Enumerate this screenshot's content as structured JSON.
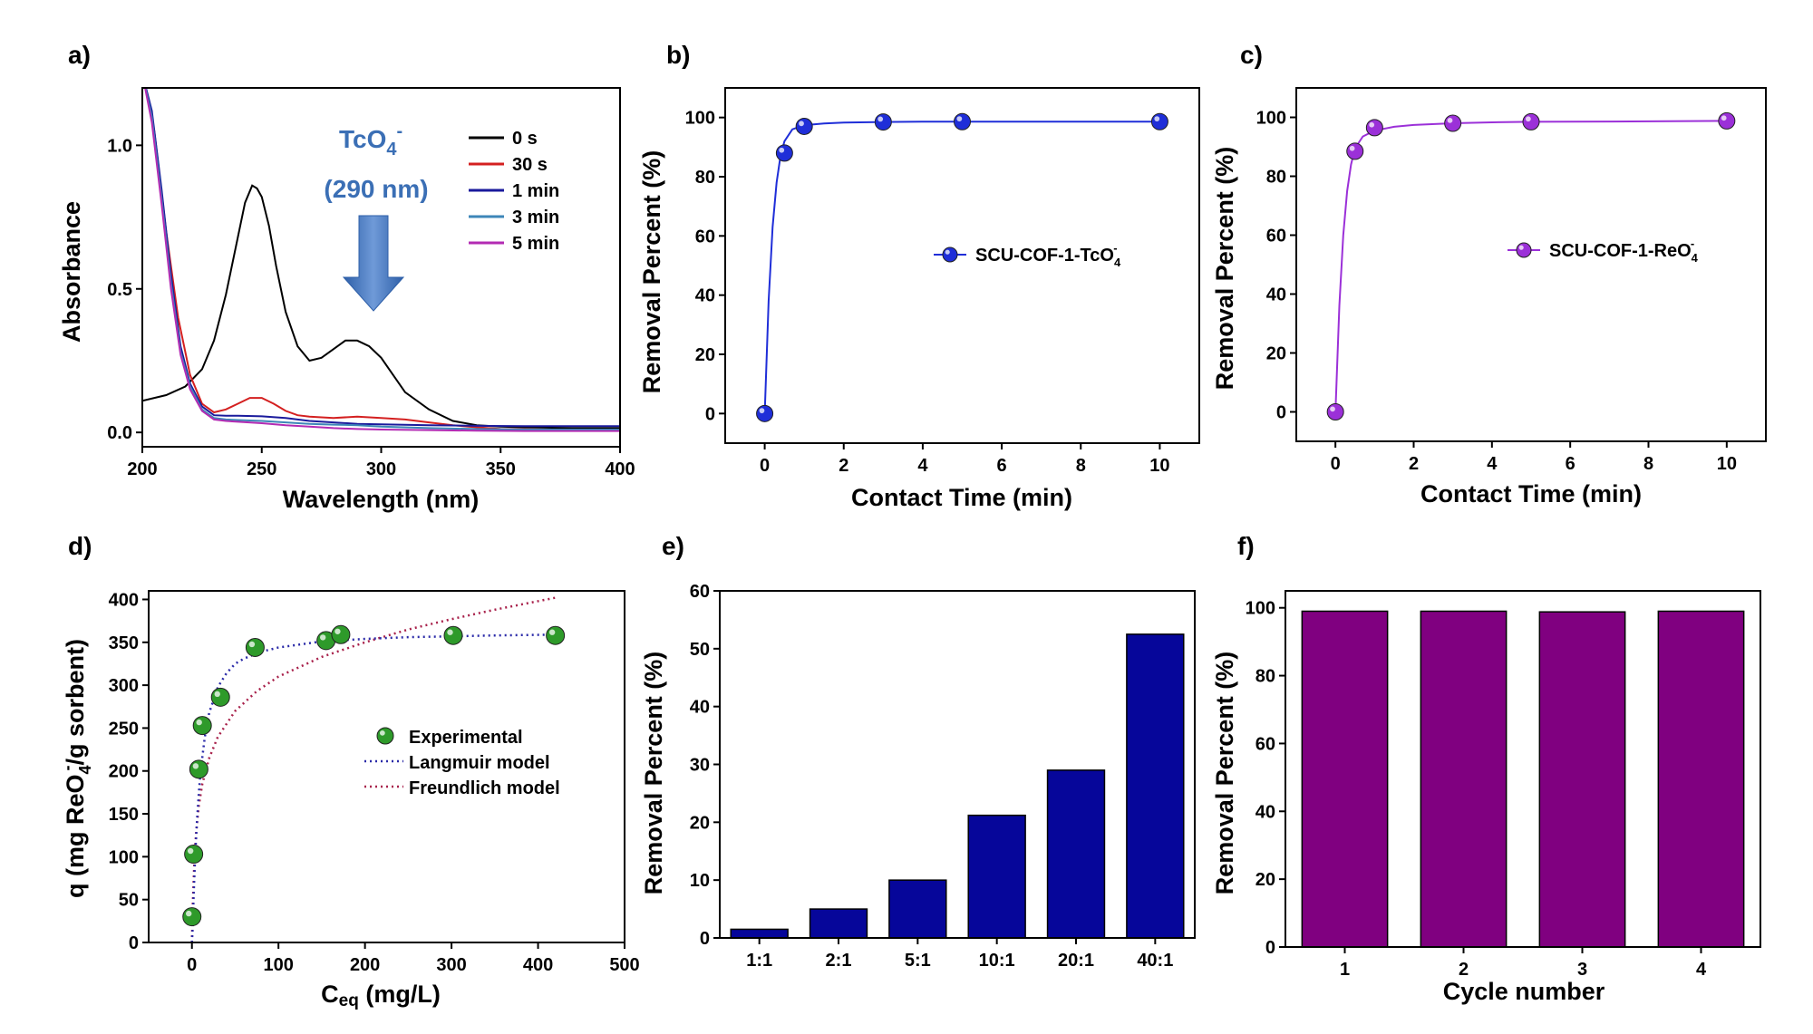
{
  "chart_data": [
    {
      "panel": "a)",
      "type": "line",
      "xlabel": "Wavelength (nm)",
      "ylabel": "Absorbance",
      "xlim": [
        200,
        400
      ],
      "ylim": [
        -0.05,
        1.2
      ],
      "xticks": [
        200,
        250,
        300,
        350,
        400
      ],
      "yticks": [
        0.0,
        0.5,
        1.0
      ],
      "ytick_labels": [
        "0.0",
        "0.5",
        "1.0"
      ],
      "annotation": {
        "ion": "TcO",
        "ion_sub": "4",
        "ion_sup": "-",
        "peak": "(290 nm)",
        "color": "#3b6fb5"
      },
      "legend_position": "top-right",
      "series": [
        {
          "name": "0 s",
          "color": "#000000",
          "x": [
            200,
            210,
            218,
            225,
            230,
            235,
            240,
            243,
            246,
            248,
            250,
            253,
            256,
            260,
            265,
            270,
            275,
            280,
            285,
            290,
            295,
            300,
            305,
            310,
            320,
            330,
            340,
            350,
            360,
            380,
            400
          ],
          "y": [
            0.11,
            0.13,
            0.16,
            0.22,
            0.32,
            0.48,
            0.68,
            0.8,
            0.86,
            0.85,
            0.82,
            0.72,
            0.58,
            0.42,
            0.3,
            0.25,
            0.26,
            0.29,
            0.32,
            0.32,
            0.3,
            0.26,
            0.2,
            0.14,
            0.08,
            0.04,
            0.025,
            0.02,
            0.018,
            0.015,
            0.015
          ]
        },
        {
          "name": "30 s",
          "color": "#d42020",
          "x": [
            200,
            205,
            210,
            215,
            220,
            225,
            230,
            235,
            240,
            245,
            250,
            255,
            260,
            265,
            270,
            280,
            290,
            300,
            310,
            320,
            330,
            340,
            350,
            370,
            400
          ],
          "y": [
            1.25,
            1.05,
            0.7,
            0.4,
            0.2,
            0.1,
            0.07,
            0.08,
            0.1,
            0.12,
            0.12,
            0.1,
            0.075,
            0.06,
            0.055,
            0.05,
            0.055,
            0.05,
            0.045,
            0.035,
            0.025,
            0.018,
            0.012,
            0.01,
            0.01
          ]
        },
        {
          "name": "1 min",
          "color": "#1a1a9c",
          "x": [
            200,
            204,
            208,
            212,
            216,
            220,
            225,
            230,
            235,
            240,
            250,
            260,
            270,
            280,
            290,
            300,
            320,
            340,
            360,
            380,
            400
          ],
          "y": [
            1.25,
            1.12,
            0.85,
            0.55,
            0.3,
            0.17,
            0.09,
            0.06,
            0.058,
            0.058,
            0.056,
            0.05,
            0.04,
            0.035,
            0.03,
            0.028,
            0.025,
            0.023,
            0.022,
            0.022,
            0.022
          ]
        },
        {
          "name": "3 min",
          "color": "#3d86b8",
          "x": [
            200,
            204,
            208,
            212,
            216,
            220,
            225,
            230,
            235,
            240,
            250,
            260,
            270,
            280,
            290,
            300,
            320,
            340,
            360,
            380,
            400
          ],
          "y": [
            1.25,
            1.1,
            0.82,
            0.52,
            0.28,
            0.16,
            0.08,
            0.05,
            0.045,
            0.043,
            0.04,
            0.035,
            0.03,
            0.027,
            0.025,
            0.02,
            0.015,
            0.012,
            0.01,
            0.01,
            0.01
          ]
        },
        {
          "name": "5 min",
          "color": "#b32bb3",
          "x": [
            200,
            204,
            208,
            212,
            216,
            220,
            225,
            230,
            235,
            240,
            250,
            260,
            270,
            280,
            290,
            300,
            320,
            340,
            360,
            380,
            400
          ],
          "y": [
            1.25,
            1.08,
            0.8,
            0.5,
            0.27,
            0.15,
            0.075,
            0.045,
            0.04,
            0.037,
            0.032,
            0.025,
            0.02,
            0.015,
            0.012,
            0.01,
            0.008,
            0.006,
            0.005,
            0.005,
            0.005
          ]
        }
      ]
    },
    {
      "panel": "b)",
      "type": "scatter",
      "xlabel": "Contact Time (min)",
      "ylabel": "Removal Percent (%)",
      "xlim": [
        -1,
        11
      ],
      "ylim": [
        -10,
        110
      ],
      "xticks": [
        0,
        2,
        4,
        6,
        8,
        10
      ],
      "yticks": [
        0,
        20,
        40,
        60,
        80,
        100
      ],
      "legend_position": "center-right",
      "series": [
        {
          "name": "SCU-COF-1-TcO",
          "name_sub": "4",
          "name_sup": "-",
          "color": "#1f2ed8",
          "x": [
            0,
            0.5,
            1,
            3,
            5,
            10
          ],
          "y": [
            0,
            88,
            97,
            98.5,
            98.6,
            98.6
          ],
          "fit_x": [
            0,
            0.1,
            0.2,
            0.3,
            0.4,
            0.5,
            0.7,
            1,
            1.5,
            2,
            3,
            4,
            5,
            7,
            10
          ],
          "fit_y": [
            0,
            38,
            63,
            78,
            87,
            92,
            96,
            97.4,
            98,
            98.3,
            98.5,
            98.6,
            98.6,
            98.6,
            98.6
          ]
        }
      ]
    },
    {
      "panel": "c)",
      "type": "scatter",
      "xlabel": "Contact Time (min)",
      "ylabel": "Removal Percent (%)",
      "xlim": [
        -1,
        11
      ],
      "ylim": [
        -10,
        110
      ],
      "xticks": [
        0,
        2,
        4,
        6,
        8,
        10
      ],
      "yticks": [
        0,
        20,
        40,
        60,
        80,
        100
      ],
      "legend_position": "center-right",
      "series": [
        {
          "name": "SCU-COF-1-ReO",
          "name_sub": "4",
          "name_sup": "-",
          "color": "#9b30d8",
          "x": [
            0,
            0.5,
            1,
            3,
            5,
            10
          ],
          "y": [
            0,
            88.5,
            96.5,
            98,
            98.5,
            98.8
          ],
          "fit_x": [
            0,
            0.1,
            0.2,
            0.3,
            0.4,
            0.5,
            0.7,
            1,
            1.5,
            2,
            3,
            4,
            5,
            7,
            10
          ],
          "fit_y": [
            0,
            36,
            60,
            75,
            84,
            89.5,
            93.5,
            95.5,
            96.8,
            97.4,
            98,
            98.3,
            98.5,
            98.6,
            98.8
          ]
        }
      ]
    },
    {
      "panel": "d)",
      "type": "scatter",
      "xlabel": "C",
      "xlabel_sub": "eq",
      "xlabel_unit": "(mg/L)",
      "ylabel_pre": "q (mg ReO",
      "ylabel_sub": "4",
      "ylabel_sup": "-",
      "ylabel_post": "/g sorbent)",
      "xlim": [
        -50,
        500
      ],
      "ylim": [
        0,
        410
      ],
      "xticks": [
        0,
        100,
        200,
        300,
        400,
        500
      ],
      "yticks": [
        0,
        50,
        100,
        150,
        200,
        250,
        300,
        350,
        400
      ],
      "legend_position": "center-right",
      "series": [
        {
          "name": "Experimental",
          "color": "#2e9a2a",
          "x": [
            0,
            2,
            8,
            12,
            33,
            73,
            155,
            172,
            302,
            420
          ],
          "y": [
            30,
            103,
            202,
            253,
            286,
            344,
            352,
            359,
            358,
            358
          ]
        },
        {
          "name": "Langmuir model",
          "color": "#2a2aa8",
          "style": "dotted",
          "x": [
            0,
            1,
            2,
            4,
            6,
            8,
            10,
            15,
            20,
            30,
            40,
            50,
            60,
            80,
            100,
            150,
            200,
            250,
            300,
            350,
            420
          ],
          "y": [
            0,
            20,
            55,
            105,
            145,
            175,
            200,
            240,
            268,
            298,
            314,
            325,
            331,
            339,
            344,
            351,
            354,
            356,
            357,
            358,
            359
          ]
        },
        {
          "name": "Freundlich model",
          "color": "#a8204a",
          "style": "dotted",
          "x": [
            0,
            1,
            3,
            5,
            8,
            12,
            20,
            30,
            50,
            75,
            100,
            150,
            200,
            250,
            300,
            350,
            420
          ],
          "y": [
            0,
            45,
            100,
            130,
            160,
            185,
            215,
            240,
            270,
            293,
            310,
            333,
            350,
            365,
            377,
            388,
            402
          ]
        }
      ]
    },
    {
      "panel": "e)",
      "type": "bar",
      "xlabel": "",
      "ylabel": "Removal Percent (%)",
      "categories": [
        "1:1",
        "2:1",
        "5:1",
        "10:1",
        "20:1",
        "40:1"
      ],
      "values": [
        1.5,
        5,
        10,
        21.2,
        29,
        52.5
      ],
      "ylim": [
        0,
        60
      ],
      "yticks": [
        0,
        10,
        20,
        30,
        40,
        50,
        60
      ],
      "color": "#06069a"
    },
    {
      "panel": "f)",
      "type": "bar",
      "xlabel": "Cycle number",
      "ylabel": "Removal Percent (%)",
      "categories": [
        "1",
        "2",
        "3",
        "4"
      ],
      "values": [
        99,
        99,
        98.8,
        99
      ],
      "ylim": [
        0,
        105
      ],
      "yticks": [
        0,
        20,
        40,
        60,
        80,
        100
      ],
      "color": "#800080"
    }
  ]
}
